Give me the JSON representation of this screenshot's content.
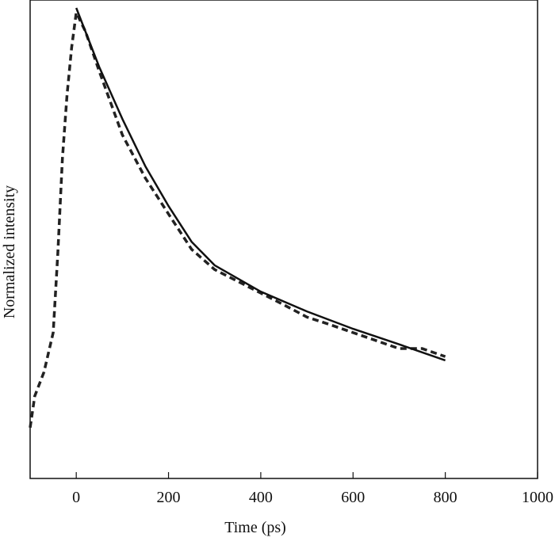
{
  "chart_data": {
    "type": "line",
    "x_label": "Time (ps)",
    "y_label": "Normalized intensity",
    "xlim": [
      -100,
      1000
    ],
    "xticks": [
      0,
      200,
      400,
      600,
      800,
      1000
    ],
    "ylim": [
      0,
      1.0
    ],
    "series": [
      {
        "color": "#222222",
        "dash": true,
        "x": [
          -100,
          -90,
          -70,
          -50,
          -40,
          -30,
          -20,
          -10,
          0,
          20,
          50,
          100,
          150,
          200,
          250,
          300,
          350,
          400,
          450,
          500,
          550,
          600,
          650,
          700,
          750,
          800
        ],
        "values": [
          0.108,
          0.175,
          0.226,
          0.31,
          0.478,
          0.68,
          0.815,
          0.916,
          0.99,
          0.95,
          0.865,
          0.73,
          0.638,
          0.562,
          0.487,
          0.444,
          0.419,
          0.394,
          0.369,
          0.343,
          0.327,
          0.31,
          0.293,
          0.276,
          0.276,
          0.259
        ]
      },
      {
        "color": "#111111",
        "dash": false,
        "x": [
          0,
          50,
          100,
          150,
          200,
          250,
          300,
          400,
          500,
          600,
          700,
          800
        ],
        "values": [
          1.0,
          0.874,
          0.764,
          0.663,
          0.579,
          0.503,
          0.453,
          0.397,
          0.355,
          0.318,
          0.285,
          0.251
        ]
      }
    ]
  }
}
